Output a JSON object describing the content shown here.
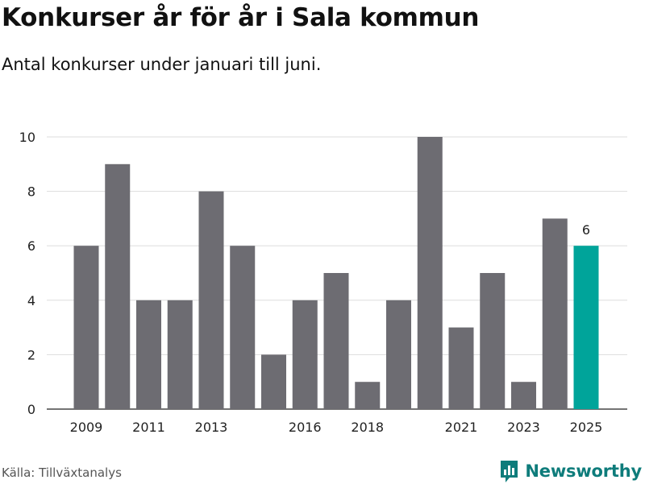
{
  "title": "Konkurser år för år i Sala kommun",
  "subtitle": "Antal konkurser under januari till juni.",
  "source": "Källa: Tillväxtanalys",
  "brand": "Newsworthy",
  "colors": {
    "bar": "#6d6c72",
    "highlight": "#00a49a",
    "grid": "#dddddd",
    "brand": "#0e7c7b"
  },
  "chart_data": {
    "type": "bar",
    "categories": [
      "2009",
      "2010",
      "2011",
      "2012",
      "2013",
      "2014",
      "2015",
      "2016",
      "2017",
      "2018",
      "2019",
      "2020",
      "2021",
      "2022",
      "2023",
      "2024",
      "2025"
    ],
    "values": [
      6,
      9,
      4,
      4,
      8,
      6,
      2,
      4,
      5,
      1,
      4,
      10,
      3,
      5,
      1,
      7,
      6
    ],
    "x_tick_labels": [
      "2009",
      "2011",
      "2013",
      "2016",
      "2018",
      "2021",
      "2023",
      "2025"
    ],
    "y_ticks": [
      0,
      2,
      4,
      6,
      8,
      10
    ],
    "ylim": [
      0,
      10
    ],
    "highlight_category": "2025",
    "data_labels": [
      {
        "category": "2025",
        "text": "6"
      }
    ],
    "grid": true,
    "legend": "none",
    "xlabel": "",
    "ylabel": ""
  }
}
